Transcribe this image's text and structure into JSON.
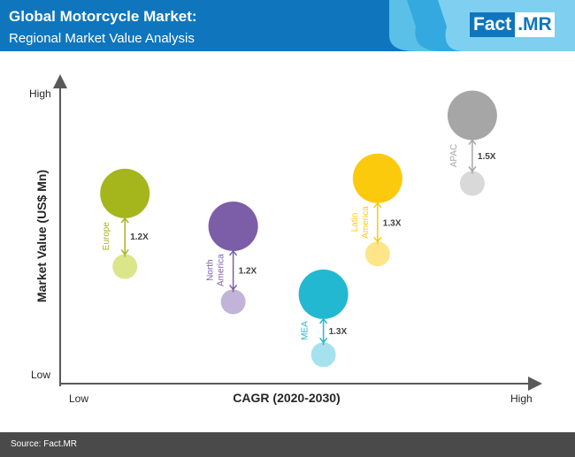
{
  "header": {
    "title": "Global Motorcycle Market:",
    "subtitle": "Regional Market Value Analysis",
    "logo_left": "Fact",
    "logo_right": ".MR"
  },
  "chart_data": {
    "type": "scatter",
    "xlabel": "CAGR (2020-2030)",
    "ylabel": "Market Value (US$ Mn)",
    "x_low": "Low",
    "x_high": "High",
    "y_low": "Low",
    "y_high": "High",
    "regions": [
      {
        "name": "Europe",
        "multiplier": "1.2X",
        "color": "#a5b51c",
        "light": "#dbe58a",
        "x": 0.12,
        "y_big": 0.66,
        "y_small": 0.37,
        "big_r": 28,
        "small_r": 14
      },
      {
        "name": "North America",
        "multiplier": "1.2X",
        "color": "#7b5ea7",
        "light": "#c2b4d8",
        "x": 0.36,
        "y_big": 0.53,
        "y_small": 0.23,
        "big_r": 28,
        "small_r": 14
      },
      {
        "name": "MEA",
        "multiplier": "1.3X",
        "color": "#22b8d1",
        "light": "#a6e2ee",
        "x": 0.56,
        "y_big": 0.26,
        "y_small": 0.02,
        "big_r": 28,
        "small_r": 14
      },
      {
        "name": "Latin America",
        "multiplier": "1.3X",
        "color": "#fcca0c",
        "light": "#fde588",
        "x": 0.68,
        "y_big": 0.72,
        "y_small": 0.42,
        "big_r": 28,
        "small_r": 14
      },
      {
        "name": "APAC",
        "multiplier": "1.5X",
        "color": "#a6a6a6",
        "light": "#d9d9d9",
        "x": 0.89,
        "y_big": 0.97,
        "y_small": 0.7,
        "big_r": 28,
        "small_r": 14
      }
    ]
  },
  "footer": {
    "source": "Source: Fact.MR"
  }
}
